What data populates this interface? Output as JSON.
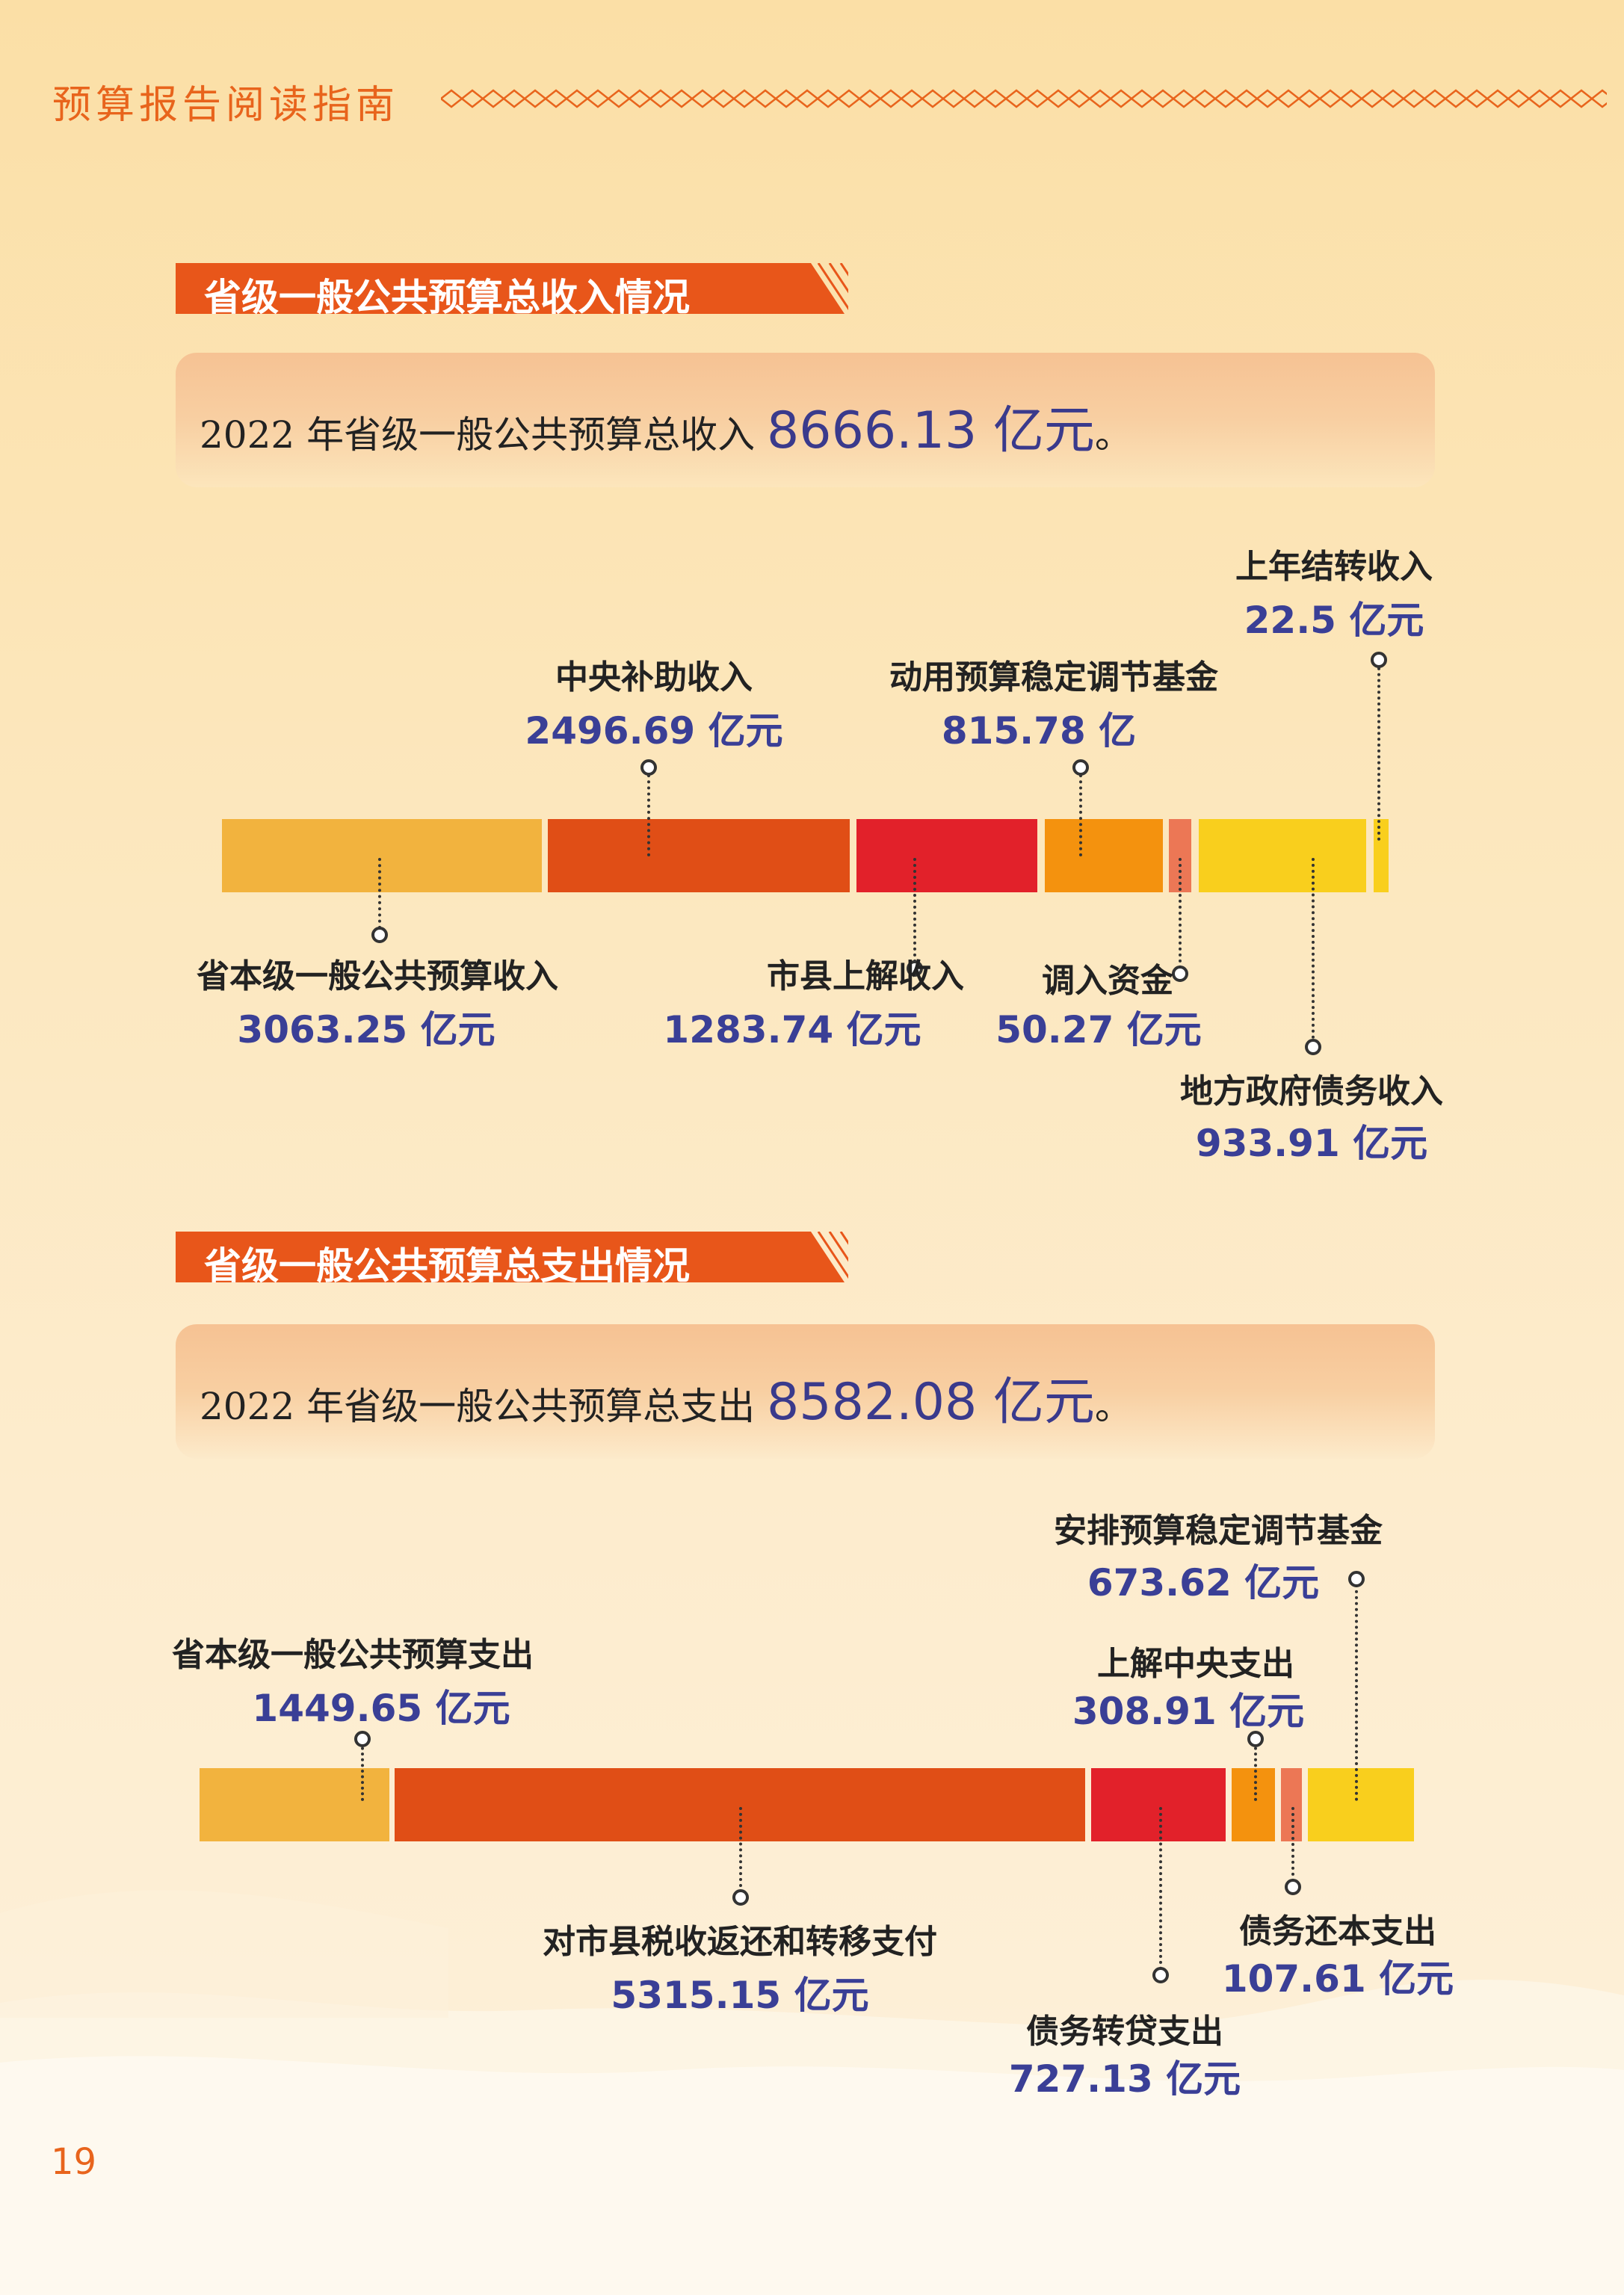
{
  "header": {
    "title": "预算报告阅读指南"
  },
  "page_number": "19",
  "revenue": {
    "section_title": "省级一般公共预算总收入情况",
    "summary_prefix": "2022 年省级一般公共预算总收入",
    "summary_amount": "8666.13 亿元",
    "summary_suffix": "。",
    "items": [
      {
        "label": "省本级一般公共预算收入",
        "value": "3063.25 亿元",
        "amount": 3063.25,
        "color": "#f2b33e"
      },
      {
        "label": "中央补助收入",
        "value": "2496.69 亿元",
        "amount": 2496.69,
        "color": "#e04e16"
      },
      {
        "label": "市县上解收入",
        "value": "1283.74 亿元",
        "amount": 1283.74,
        "color": "#e2212a"
      },
      {
        "label": "动用预算稳定调节基金",
        "value": "815.78 亿",
        "amount": 815.78,
        "color": "#f4920e"
      },
      {
        "label": "调入资金",
        "value": "50.27 亿元",
        "amount": 50.27,
        "color": "#ec7755"
      },
      {
        "label": "地方政府债务收入",
        "value": "933.91 亿元",
        "amount": 933.91,
        "color": "#f9cf1d"
      },
      {
        "label": "上年结转收入",
        "value": "22.5 亿元",
        "amount": 22.5,
        "color": "#f9cf1d"
      }
    ]
  },
  "expenditure": {
    "section_title": "省级一般公共预算总支出情况",
    "summary_prefix": "2022 年省级一般公共预算总支出",
    "summary_amount": "8582.08 亿元",
    "summary_suffix": "。",
    "items": [
      {
        "label": "省本级一般公共预算支出",
        "value": "1449.65 亿元",
        "amount": 1449.65,
        "color": "#f2b33e"
      },
      {
        "label": "对市县税收返还和转移支付",
        "value": "5315.15 亿元",
        "amount": 5315.15,
        "color": "#e04e16"
      },
      {
        "label": "债务转贷支出",
        "value": "727.13 亿元",
        "amount": 727.13,
        "color": "#e2212a"
      },
      {
        "label": "上解中央支出",
        "value": "308.91 亿元",
        "amount": 308.91,
        "color": "#f4920e"
      },
      {
        "label": "债务还本支出",
        "value": "107.61 亿元",
        "amount": 107.61,
        "color": "#ec7755"
      },
      {
        "label": "安排预算稳定调节基金",
        "value": "673.62 亿元",
        "amount": 673.62,
        "color": "#f9cf1d"
      }
    ]
  }
}
